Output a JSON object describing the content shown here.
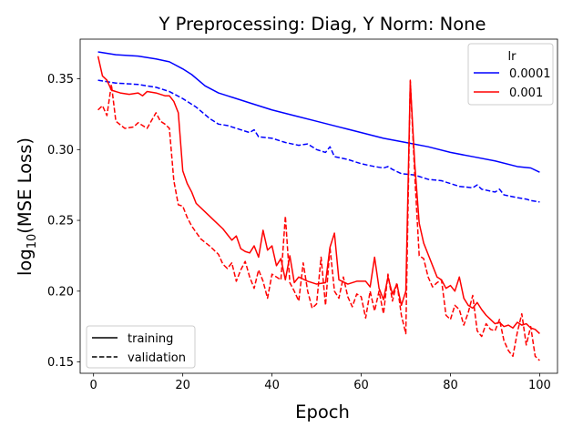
{
  "chart_data": {
    "type": "line",
    "title": "Y Preprocessing: Diag, Y Norm: None",
    "xlabel": "Epoch",
    "ylabel_main": "log",
    "ylabel_sub": "10",
    "ylabel_rest": "(MSE Loss)",
    "xlim": [
      -3,
      104
    ],
    "ylim": [
      0.142,
      0.378
    ],
    "xticks": [
      0,
      20,
      40,
      60,
      80,
      100
    ],
    "yticks": [
      0.15,
      0.2,
      0.25,
      0.3,
      0.35
    ],
    "xtick_labels": [
      "0",
      "20",
      "40",
      "60",
      "80",
      "100"
    ],
    "ytick_labels": [
      "0.15",
      "0.20",
      "0.25",
      "0.30",
      "0.35"
    ],
    "grid": false,
    "legend_lr": {
      "title": "lr",
      "placement": "top-right",
      "entries": [
        {
          "label": "0.0001",
          "color": "#0000ff"
        },
        {
          "label": "0.001",
          "color": "#ff0000"
        }
      ]
    },
    "legend_style": {
      "placement": "bottom-left",
      "entries": [
        {
          "label": "training",
          "dash": "solid"
        },
        {
          "label": "validation",
          "dash": "dashed"
        }
      ]
    },
    "series": [
      {
        "lr": "0.0001",
        "split": "training",
        "color": "#0000ff",
        "dash": "solid",
        "points": [
          [
            1,
            0.369
          ],
          [
            5,
            0.367
          ],
          [
            10,
            0.366
          ],
          [
            14,
            0.364
          ],
          [
            17,
            0.362
          ],
          [
            20,
            0.357
          ],
          [
            22,
            0.353
          ],
          [
            25,
            0.345
          ],
          [
            28,
            0.34
          ],
          [
            30,
            0.338
          ],
          [
            35,
            0.333
          ],
          [
            40,
            0.328
          ],
          [
            45,
            0.324
          ],
          [
            50,
            0.32
          ],
          [
            55,
            0.316
          ],
          [
            60,
            0.312
          ],
          [
            65,
            0.308
          ],
          [
            70,
            0.305
          ],
          [
            75,
            0.302
          ],
          [
            80,
            0.298
          ],
          [
            85,
            0.295
          ],
          [
            90,
            0.292
          ],
          [
            95,
            0.288
          ],
          [
            98,
            0.287
          ],
          [
            100,
            0.284
          ]
        ]
      },
      {
        "lr": "0.0001",
        "split": "validation",
        "color": "#0000ff",
        "dash": "dashed",
        "points": [
          [
            1,
            0.349
          ],
          [
            5,
            0.347
          ],
          [
            10,
            0.346
          ],
          [
            14,
            0.344
          ],
          [
            17,
            0.341
          ],
          [
            20,
            0.336
          ],
          [
            23,
            0.33
          ],
          [
            26,
            0.322
          ],
          [
            28,
            0.318
          ],
          [
            30,
            0.317
          ],
          [
            33,
            0.314
          ],
          [
            35,
            0.312
          ],
          [
            36,
            0.314
          ],
          [
            37,
            0.309
          ],
          [
            40,
            0.308
          ],
          [
            43,
            0.305
          ],
          [
            46,
            0.303
          ],
          [
            48,
            0.304
          ],
          [
            50,
            0.3
          ],
          [
            52,
            0.298
          ],
          [
            53,
            0.302
          ],
          [
            54,
            0.295
          ],
          [
            57,
            0.293
          ],
          [
            60,
            0.29
          ],
          [
            63,
            0.288
          ],
          [
            65,
            0.287
          ],
          [
            66,
            0.288
          ],
          [
            67,
            0.286
          ],
          [
            69,
            0.283
          ],
          [
            72,
            0.282
          ],
          [
            75,
            0.279
          ],
          [
            78,
            0.278
          ],
          [
            80,
            0.276
          ],
          [
            82,
            0.274
          ],
          [
            85,
            0.273
          ],
          [
            86,
            0.275
          ],
          [
            87,
            0.272
          ],
          [
            90,
            0.27
          ],
          [
            91,
            0.272
          ],
          [
            92,
            0.268
          ],
          [
            95,
            0.266
          ],
          [
            97,
            0.265
          ],
          [
            98,
            0.264
          ],
          [
            100,
            0.263
          ]
        ]
      },
      {
        "lr": "0.001",
        "split": "training",
        "color": "#ff0000",
        "dash": "solid",
        "points": [
          [
            1,
            0.366
          ],
          [
            2,
            0.352
          ],
          [
            3,
            0.349
          ],
          [
            4,
            0.342
          ],
          [
            6,
            0.34
          ],
          [
            8,
            0.339
          ],
          [
            10,
            0.34
          ],
          [
            11,
            0.338
          ],
          [
            12,
            0.341
          ],
          [
            14,
            0.34
          ],
          [
            16,
            0.338
          ],
          [
            17,
            0.338
          ],
          [
            18,
            0.334
          ],
          [
            19,
            0.326
          ],
          [
            20,
            0.285
          ],
          [
            21,
            0.276
          ],
          [
            22,
            0.27
          ],
          [
            23,
            0.262
          ],
          [
            25,
            0.256
          ],
          [
            27,
            0.25
          ],
          [
            29,
            0.244
          ],
          [
            30,
            0.24
          ],
          [
            31,
            0.236
          ],
          [
            32,
            0.239
          ],
          [
            33,
            0.23
          ],
          [
            34,
            0.228
          ],
          [
            35,
            0.227
          ],
          [
            36,
            0.232
          ],
          [
            37,
            0.224
          ],
          [
            38,
            0.243
          ],
          [
            39,
            0.229
          ],
          [
            40,
            0.232
          ],
          [
            41,
            0.218
          ],
          [
            42,
            0.223
          ],
          [
            43,
            0.208
          ],
          [
            44,
            0.225
          ],
          [
            45,
            0.206
          ],
          [
            46,
            0.21
          ],
          [
            48,
            0.207
          ],
          [
            50,
            0.205
          ],
          [
            52,
            0.206
          ],
          [
            53,
            0.231
          ],
          [
            54,
            0.241
          ],
          [
            55,
            0.208
          ],
          [
            57,
            0.205
          ],
          [
            59,
            0.207
          ],
          [
            61,
            0.207
          ],
          [
            62,
            0.203
          ],
          [
            63,
            0.224
          ],
          [
            64,
            0.202
          ],
          [
            65,
            0.194
          ],
          [
            66,
            0.21
          ],
          [
            67,
            0.198
          ],
          [
            68,
            0.205
          ],
          [
            69,
            0.19
          ],
          [
            70,
            0.2
          ],
          [
            71,
            0.348
          ],
          [
            72,
            0.29
          ],
          [
            73,
            0.248
          ],
          [
            74,
            0.234
          ],
          [
            75,
            0.226
          ],
          [
            76,
            0.218
          ],
          [
            77,
            0.21
          ],
          [
            78,
            0.208
          ],
          [
            79,
            0.202
          ],
          [
            80,
            0.204
          ],
          [
            81,
            0.2
          ],
          [
            82,
            0.21
          ],
          [
            83,
            0.195
          ],
          [
            84,
            0.19
          ],
          [
            85,
            0.188
          ],
          [
            86,
            0.192
          ],
          [
            87,
            0.187
          ],
          [
            88,
            0.183
          ],
          [
            89,
            0.18
          ],
          [
            90,
            0.177
          ],
          [
            91,
            0.178
          ],
          [
            92,
            0.175
          ],
          [
            93,
            0.176
          ],
          [
            94,
            0.174
          ],
          [
            95,
            0.178
          ],
          [
            96,
            0.176
          ],
          [
            97,
            0.177
          ],
          [
            98,
            0.174
          ],
          [
            99,
            0.173
          ],
          [
            100,
            0.17
          ]
        ]
      },
      {
        "lr": "0.001",
        "split": "validation",
        "color": "#ff0000",
        "dash": "dashed",
        "points": [
          [
            1,
            0.328
          ],
          [
            2,
            0.331
          ],
          [
            3,
            0.324
          ],
          [
            4,
            0.346
          ],
          [
            5,
            0.32
          ],
          [
            7,
            0.315
          ],
          [
            9,
            0.316
          ],
          [
            10,
            0.319
          ],
          [
            11,
            0.317
          ],
          [
            12,
            0.315
          ],
          [
            14,
            0.326
          ],
          [
            15,
            0.32
          ],
          [
            16,
            0.318
          ],
          [
            17,
            0.315
          ],
          [
            18,
            0.278
          ],
          [
            19,
            0.261
          ],
          [
            20,
            0.26
          ],
          [
            21,
            0.252
          ],
          [
            22,
            0.246
          ],
          [
            24,
            0.237
          ],
          [
            26,
            0.232
          ],
          [
            28,
            0.226
          ],
          [
            29,
            0.219
          ],
          [
            30,
            0.216
          ],
          [
            31,
            0.22
          ],
          [
            32,
            0.207
          ],
          [
            33,
            0.215
          ],
          [
            34,
            0.221
          ],
          [
            35,
            0.21
          ],
          [
            36,
            0.202
          ],
          [
            37,
            0.215
          ],
          [
            38,
            0.207
          ],
          [
            39,
            0.195
          ],
          [
            40,
            0.212
          ],
          [
            41,
            0.21
          ],
          [
            42,
            0.208
          ],
          [
            43,
            0.253
          ],
          [
            44,
            0.206
          ],
          [
            45,
            0.2
          ],
          [
            46,
            0.193
          ],
          [
            47,
            0.22
          ],
          [
            48,
            0.2
          ],
          [
            49,
            0.188
          ],
          [
            50,
            0.191
          ],
          [
            51,
            0.224
          ],
          [
            52,
            0.19
          ],
          [
            53,
            0.231
          ],
          [
            54,
            0.2
          ],
          [
            55,
            0.195
          ],
          [
            56,
            0.21
          ],
          [
            57,
            0.196
          ],
          [
            58,
            0.189
          ],
          [
            59,
            0.198
          ],
          [
            60,
            0.196
          ],
          [
            61,
            0.181
          ],
          [
            62,
            0.2
          ],
          [
            63,
            0.186
          ],
          [
            64,
            0.2
          ],
          [
            65,
            0.184
          ],
          [
            66,
            0.212
          ],
          [
            67,
            0.193
          ],
          [
            68,
            0.206
          ],
          [
            69,
            0.183
          ],
          [
            70,
            0.17
          ],
          [
            71,
            0.349
          ],
          [
            72,
            0.282
          ],
          [
            73,
            0.225
          ],
          [
            74,
            0.223
          ],
          [
            75,
            0.21
          ],
          [
            76,
            0.203
          ],
          [
            77,
            0.206
          ],
          [
            78,
            0.208
          ],
          [
            79,
            0.183
          ],
          [
            80,
            0.18
          ],
          [
            81,
            0.19
          ],
          [
            82,
            0.187
          ],
          [
            83,
            0.176
          ],
          [
            84,
            0.185
          ],
          [
            85,
            0.197
          ],
          [
            86,
            0.172
          ],
          [
            87,
            0.168
          ],
          [
            88,
            0.177
          ],
          [
            89,
            0.173
          ],
          [
            90,
            0.172
          ],
          [
            91,
            0.18
          ],
          [
            92,
            0.165
          ],
          [
            93,
            0.158
          ],
          [
            94,
            0.154
          ],
          [
            95,
            0.171
          ],
          [
            96,
            0.184
          ],
          [
            97,
            0.162
          ],
          [
            98,
            0.175
          ],
          [
            99,
            0.154
          ],
          [
            100,
            0.151
          ]
        ]
      }
    ]
  }
}
